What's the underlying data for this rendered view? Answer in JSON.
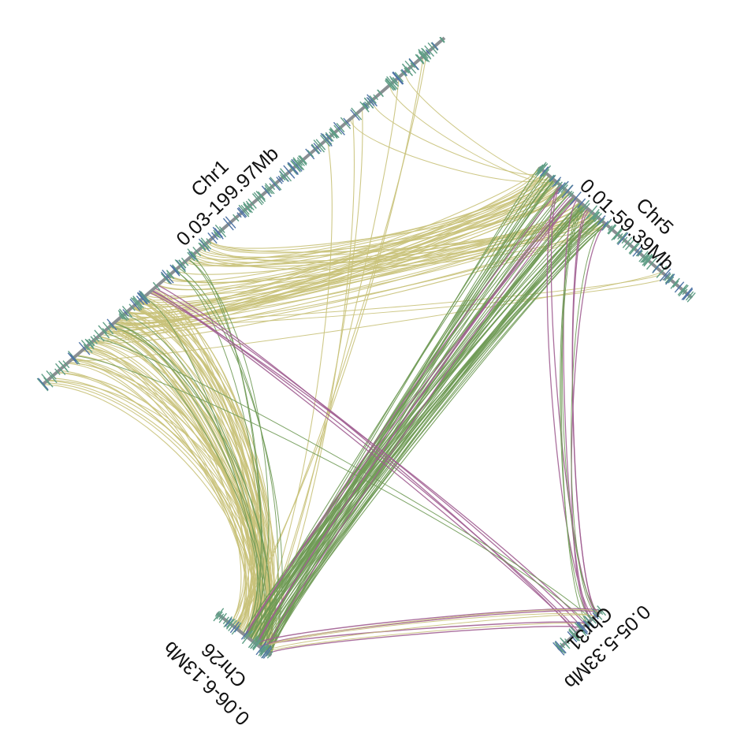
{
  "chromosomes": [
    {
      "id": "chr1",
      "name": "Chr1",
      "range": "0.03-199.97Mb"
    },
    {
      "id": "chr5",
      "name": "Chr5",
      "range": "0.01-59.39Mb"
    },
    {
      "id": "chr26",
      "name": "Chr26",
      "range": "0.06-6.13Mb"
    },
    {
      "id": "chr31",
      "name": "Chr31",
      "range": "0.05-5.33Mb"
    }
  ],
  "colors": {
    "axis": "#8a8f93",
    "gene_a": "#5f9e86",
    "gene_b": "#4f74a5",
    "link_yellow": "#c9c27a",
    "link_green": "#6f9a55",
    "link_purple": "#a15f92"
  },
  "link_groups": {
    "chr1_to_chr5": {
      "from": "Chr1",
      "to": "Chr5",
      "color": "link_yellow"
    },
    "chr5_to_chr26": {
      "from": "Chr5",
      "to": "Chr26",
      "color": "link_green"
    },
    "chr1_to_chr26": {
      "from": "Chr1",
      "to": "Chr26",
      "color": "link_yellow"
    },
    "chr1_to_chr31": {
      "from": "Chr1",
      "to": "Chr31",
      "color": "link_purple"
    },
    "chr5_to_chr31": {
      "from": "Chr5",
      "to": "Chr31",
      "color": "link_purple"
    },
    "chr26_to_chr31": {
      "from": "Chr26",
      "to": "Chr31",
      "color": "link_purple"
    }
  }
}
